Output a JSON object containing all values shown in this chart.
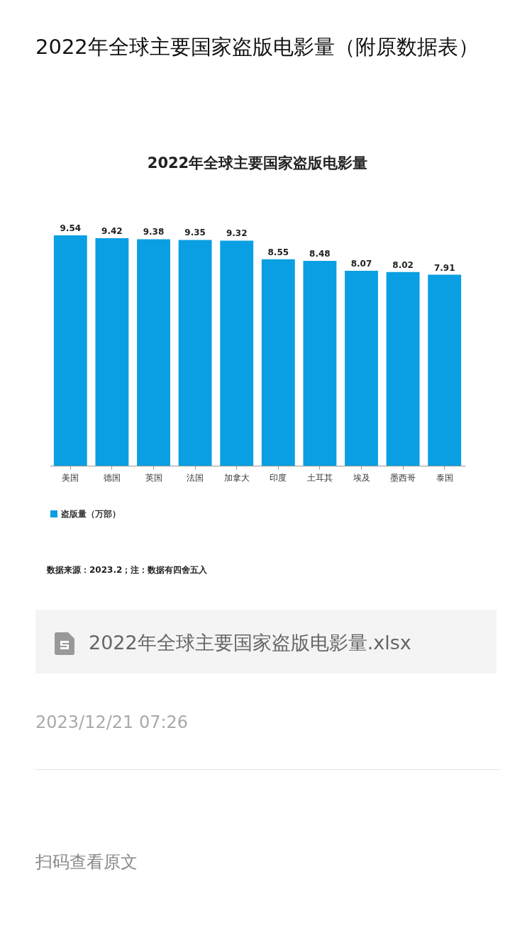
{
  "chart_data": {
    "type": "bar",
    "title": "2022年全球主要国家盗版电影量（附原数据表）",
    "subtitle": "2022年全球主要国家盗版电影量",
    "categories": [
      "美国",
      "德国",
      "英国",
      "法国",
      "加拿大",
      "印度",
      "土耳其",
      "埃及",
      "墨西哥",
      "泰国"
    ],
    "series": [
      {
        "name": "盗版量（万部）",
        "color": "#0a9fe3",
        "values": [
          9.54,
          9.42,
          9.38,
          9.35,
          9.32,
          8.55,
          8.48,
          8.07,
          8.02,
          7.91
        ]
      }
    ],
    "data_labels": true,
    "grid": false,
    "legend": "bottom",
    "annotations": [
      "数据来源：2023.2；注：数据有四舍五入",
      "2022年全球主要国家盗版电影量.xlsx",
      "2023/12/21 07:26",
      "扫码查看原文"
    ]
  }
}
